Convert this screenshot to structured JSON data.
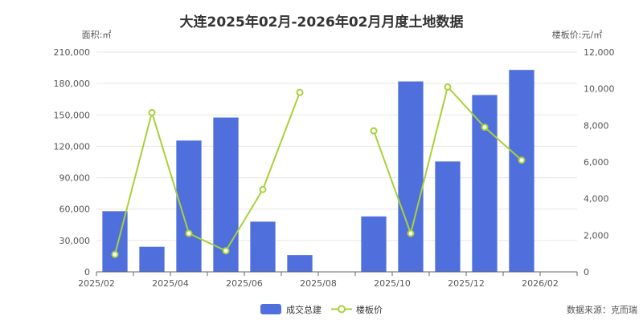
{
  "chart_data": {
    "type": "bar",
    "title": "大连2025年02月-2026年02月月度土地数据",
    "left_axis_name": "面积:㎡",
    "right_axis_name": "楼板价:元/㎡",
    "categories": [
      "2025/02",
      "2025/03",
      "2025/04",
      "2025/05",
      "2025/06",
      "2025/07",
      "2025/08",
      "2025/09",
      "2025/10",
      "2025/11",
      "2025/12",
      "2026/01",
      "2026/02"
    ],
    "x_tick_labels": [
      "2025/02",
      "2025/04",
      "2025/06",
      "2025/08",
      "2025/10",
      "2025/12",
      "2026/02"
    ],
    "series": [
      {
        "name": "成交总建",
        "type": "bar",
        "axis": "left",
        "color": "#4f6fdd",
        "values": [
          58000,
          24000,
          125500,
          147500,
          48000,
          16000,
          0,
          53000,
          182000,
          105500,
          169000,
          193000,
          0
        ]
      },
      {
        "name": "楼板价",
        "type": "line",
        "axis": "right",
        "color": "#a8d13a",
        "values": [
          950,
          8700,
          2100,
          1150,
          4500,
          9800,
          null,
          7700,
          2100,
          10100,
          7900,
          6100,
          null
        ]
      }
    ],
    "y_left": {
      "min": 0,
      "max": 210000,
      "ticks": [
        "0",
        "30,000",
        "60,000",
        "90,000",
        "120,000",
        "150,000",
        "180,000",
        "210,000"
      ]
    },
    "y_right": {
      "min": 0,
      "max": 12000,
      "ticks": [
        "0",
        "2,000",
        "4,000",
        "6,000",
        "8,000",
        "10,000",
        "12,000"
      ]
    },
    "legend": {
      "position": "bottom",
      "items": [
        "成交总建",
        "楼板价"
      ]
    },
    "grid": true
  },
  "footer": {
    "source": "数据来源：克而瑞"
  }
}
